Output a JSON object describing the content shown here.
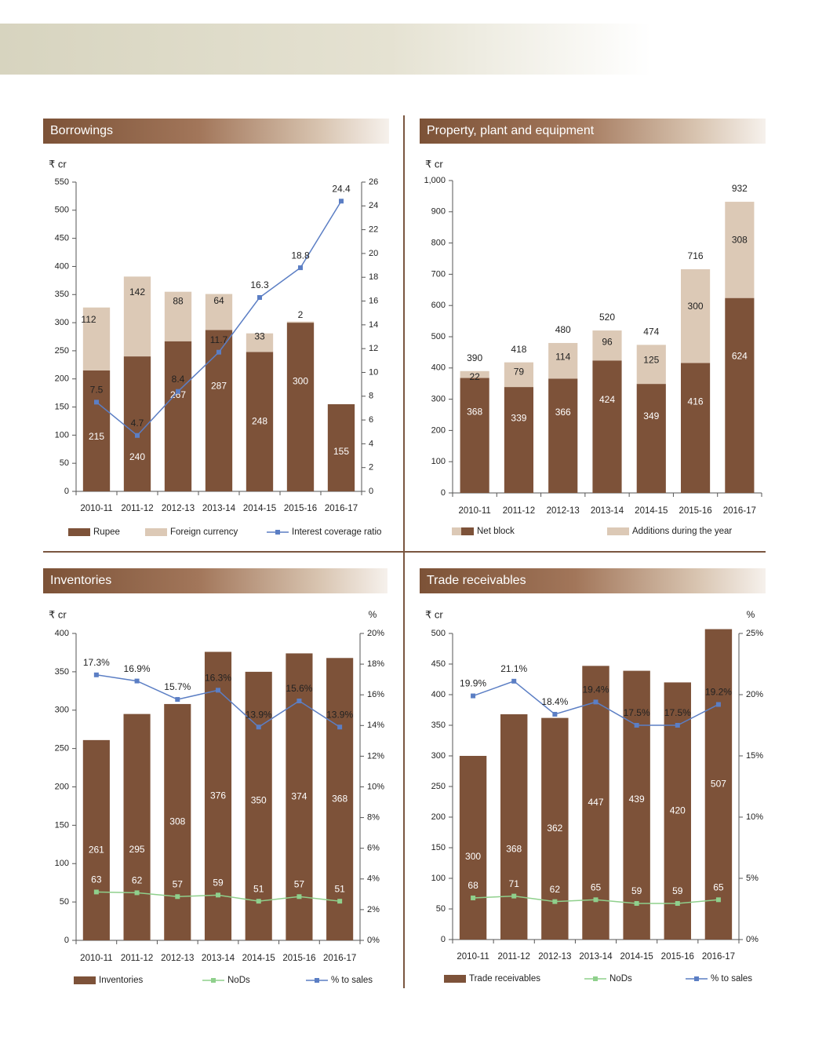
{
  "colors": {
    "rupee": "#7d5239",
    "foreign": "#dcc9b6",
    "line": "#5b7ec4",
    "nods": "#8fd08c",
    "axis": "#555555",
    "label_dark": "#222222",
    "label_light": "#ffffff"
  },
  "panels": {
    "borrowings": {
      "title": "Borrowings"
    },
    "ppe": {
      "title": "Property, plant and equipment"
    },
    "inventories": {
      "title": "Inventories"
    },
    "receivables": {
      "title": "Trade receivables"
    }
  },
  "chart_data": [
    {
      "id": "borrowings",
      "type": "bar",
      "stacked": true,
      "title": "Borrowings",
      "ylabel": "₹ cr",
      "y2label": "",
      "ylim": [
        0,
        550
      ],
      "yticks": [
        0,
        50,
        100,
        150,
        200,
        250,
        300,
        350,
        400,
        450,
        500,
        550
      ],
      "y2lim": [
        0,
        26
      ],
      "y2ticks": [
        0,
        2,
        4,
        6,
        8,
        10,
        12,
        14,
        16,
        18,
        20,
        22,
        24,
        26
      ],
      "categories": [
        "2010-11",
        "2011-12",
        "2012-13",
        "2013-14",
        "2014-15",
        "2015-16",
        "2016-17"
      ],
      "series": [
        {
          "name": "Rupee",
          "kind": "bar",
          "values": [
            215,
            240,
            267,
            287,
            248,
            300,
            155
          ]
        },
        {
          "name": "Foreign currency",
          "kind": "bar",
          "values": [
            112,
            142,
            88,
            64,
            33,
            2,
            0
          ],
          "labels": [
            "112",
            "142",
            "88",
            "64",
            "33",
            "2",
            ""
          ]
        },
        {
          "name": "Interest coverage ratio",
          "kind": "line",
          "axis": "y2",
          "values": [
            7.5,
            4.7,
            8.4,
            11.7,
            16.3,
            18.8,
            24.4
          ]
        }
      ]
    },
    {
      "id": "ppe",
      "type": "bar",
      "stacked": true,
      "title": "Property, plant and equipment",
      "ylabel": "₹ cr",
      "ylim": [
        0,
        1000
      ],
      "yticks": [
        "0",
        "100",
        "200",
        "300",
        "400",
        "500",
        "600",
        "700",
        "800",
        "900",
        "1,000"
      ],
      "categories": [
        "2010-11",
        "2011-12",
        "2012-13",
        "2013-14",
        "2014-15",
        "2015-16",
        "2016-17"
      ],
      "totals": [
        390,
        418,
        480,
        520,
        474,
        716,
        932
      ],
      "series": [
        {
          "name": "Net block",
          "kind": "bar",
          "values": [
            368,
            339,
            366,
            424,
            349,
            416,
            624
          ]
        },
        {
          "name": "Additions during the year",
          "kind": "bar",
          "values": [
            22,
            79,
            114,
            96,
            125,
            300,
            308
          ]
        }
      ]
    },
    {
      "id": "inventories",
      "type": "bar",
      "title": "Inventories",
      "ylabel": "₹ cr",
      "y2label": "%",
      "ylim": [
        0,
        400
      ],
      "yticks": [
        0,
        50,
        100,
        150,
        200,
        250,
        300,
        350,
        400
      ],
      "y2lim": [
        0,
        20
      ],
      "y2ticks": [
        "0%",
        "2%",
        "4%",
        "6%",
        "8%",
        "10%",
        "12%",
        "14%",
        "16%",
        "18%",
        "20%"
      ],
      "categories": [
        "2010-11",
        "2011-12",
        "2012-13",
        "2013-14",
        "2014-15",
        "2015-16",
        "2016-17"
      ],
      "series": [
        {
          "name": "Inventories",
          "kind": "bar",
          "values": [
            261,
            295,
            308,
            376,
            350,
            374,
            368
          ]
        },
        {
          "name": "NoDs",
          "kind": "line",
          "values": [
            63,
            62,
            57,
            59,
            51,
            57,
            51
          ]
        },
        {
          "name": "% to sales",
          "kind": "line",
          "axis": "y2",
          "values": [
            17.3,
            16.9,
            15.7,
            16.3,
            13.9,
            15.6,
            13.9
          ],
          "labels": [
            "17.3%",
            "16.9%",
            "15.7%",
            "16.3%",
            "13.9%",
            "15.6%",
            "13.9%"
          ]
        }
      ]
    },
    {
      "id": "receivables",
      "type": "bar",
      "title": "Trade receivables",
      "ylabel": "₹ cr",
      "y2label": "%",
      "ylim": [
        0,
        500
      ],
      "yticks": [
        0,
        50,
        100,
        150,
        200,
        250,
        300,
        350,
        400,
        450,
        500
      ],
      "y2lim": [
        0,
        25
      ],
      "y2ticks": [
        "0%",
        "5%",
        "10%",
        "15%",
        "20%",
        "25%"
      ],
      "categories": [
        "2010-11",
        "2011-12",
        "2012-13",
        "2013-14",
        "2014-15",
        "2015-16",
        "2016-17"
      ],
      "series": [
        {
          "name": "Trade receivables",
          "kind": "bar",
          "values": [
            300,
            368,
            362,
            447,
            439,
            420,
            507
          ]
        },
        {
          "name": "NoDs",
          "kind": "line",
          "values": [
            68,
            71,
            62,
            65,
            59,
            59,
            65
          ]
        },
        {
          "name": "% to sales",
          "kind": "line",
          "axis": "y2",
          "values": [
            19.9,
            21.1,
            18.4,
            19.4,
            17.5,
            17.5,
            19.2
          ],
          "labels": [
            "19.9%",
            "21.1%",
            "18.4%",
            "19.4%",
            "17.5%",
            "17.5%",
            "19.2%"
          ]
        }
      ]
    }
  ]
}
